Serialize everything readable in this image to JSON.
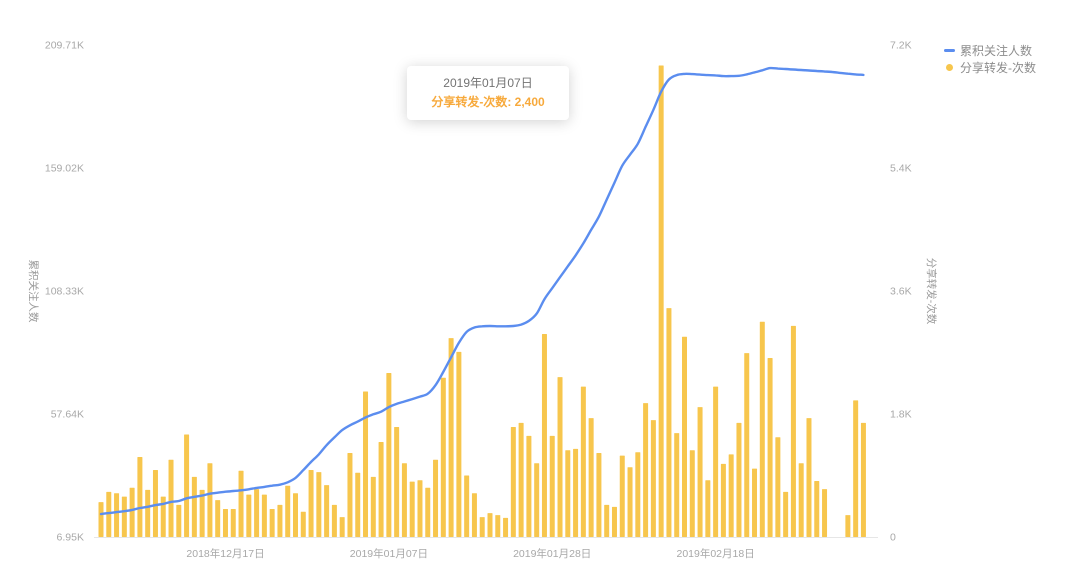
{
  "tooltip": {
    "date": "2019年01月07日",
    "label": "分享转发-次数",
    "separator": ": ",
    "value": "2,400",
    "accent_color": "#F7A93B"
  },
  "legend": [
    {
      "label": "累积关注人数",
      "color": "#5B8DEF",
      "marker": "line"
    },
    {
      "label": "分享转发-次数",
      "color": "#F7C64D",
      "marker": "dot"
    }
  ],
  "chart_data": {
    "type": "bar",
    "title": "",
    "grid": false,
    "legend_position": "top-right",
    "start_date": "2018-12-01",
    "x_tick_labels": [
      {
        "index": 16,
        "label": "2018年12月17日"
      },
      {
        "index": 37,
        "label": "2019年01月07日"
      },
      {
        "index": 58,
        "label": "2019年01月28日"
      },
      {
        "index": 79,
        "label": "2019年02月18日"
      }
    ],
    "left_axis": {
      "title": "累积关注人数",
      "range": [
        6.95,
        209.71
      ],
      "unit": "K",
      "ticks": [
        {
          "label": "6.95K",
          "value": 6.95
        },
        {
          "label": "57.64K",
          "value": 57.64
        },
        {
          "label": "108.33K",
          "value": 108.33
        },
        {
          "label": "159.02K",
          "value": 159.02
        },
        {
          "label": "209.71K",
          "value": 209.71
        }
      ]
    },
    "right_axis": {
      "title": "分享转发-次数",
      "range": [
        0,
        7200
      ],
      "ticks": [
        {
          "label": "0",
          "value": 0
        },
        {
          "label": "1.8K",
          "value": 1800
        },
        {
          "label": "3.6K",
          "value": 3600
        },
        {
          "label": "5.4K",
          "value": 5400
        },
        {
          "label": "7.2K",
          "value": 7200
        }
      ]
    },
    "series": [
      {
        "name": "累积关注人数",
        "type": "line",
        "axis": "left",
        "unit": "K",
        "color": "#5B8DEF",
        "values": [
          16.4,
          16.8,
          17.2,
          17.6,
          18.1,
          18.9,
          19.4,
          20.1,
          20.6,
          21.4,
          21.8,
          22.9,
          23.5,
          24.0,
          24.8,
          25.2,
          25.6,
          25.9,
          26.2,
          26.6,
          27.2,
          27.6,
          28.1,
          28.5,
          29.5,
          31.3,
          34.5,
          37.9,
          41.0,
          44.8,
          48.0,
          51.0,
          53.0,
          54.5,
          56.2,
          57.5,
          58.6,
          60.5,
          61.8,
          62.8,
          63.8,
          64.8,
          66.0,
          69.5,
          75.0,
          81.0,
          87.0,
          91.5,
          93.3,
          93.8,
          93.9,
          93.8,
          93.8,
          93.9,
          94.5,
          96.0,
          99.0,
          105.0,
          109.5,
          114.0,
          118.5,
          123.0,
          128.0,
          133.5,
          139.0,
          146.0,
          153.0,
          160.0,
          164.5,
          169.0,
          176.0,
          183.0,
          190.5,
          195.5,
          197.3,
          197.8,
          197.7,
          197.5,
          197.3,
          197.2,
          196.9,
          196.9,
          197.0,
          197.6,
          198.4,
          199.3,
          200.2,
          200.0,
          199.8,
          199.6,
          199.4,
          199.2,
          199.0,
          198.8,
          198.6,
          198.2,
          197.9,
          197.6,
          197.4
        ]
      },
      {
        "name": "分享转发-次数",
        "type": "bar",
        "axis": "right",
        "color": "#F7C64D",
        "values": [
          510,
          660,
          640,
          590,
          720,
          1170,
          690,
          980,
          590,
          1130,
          470,
          1500,
          880,
          690,
          1080,
          540,
          410,
          410,
          970,
          620,
          700,
          620,
          410,
          470,
          750,
          640,
          370,
          980,
          950,
          760,
          470,
          290,
          1230,
          940,
          2130,
          880,
          1390,
          2400,
          1610,
          1080,
          810,
          830,
          720,
          1130,
          2330,
          2910,
          2710,
          900,
          640,
          290,
          350,
          320,
          280,
          1610,
          1670,
          1480,
          1080,
          2970,
          1480,
          2340,
          1270,
          1290,
          2200,
          1740,
          1230,
          470,
          440,
          1190,
          1020,
          1240,
          1960,
          1710,
          6900,
          3350,
          1520,
          2930,
          1270,
          1900,
          830,
          2200,
          1070,
          1210,
          1670,
          2690,
          1000,
          3150,
          2620,
          1460,
          660,
          3090,
          1080,
          1740,
          820,
          700,
          0,
          0,
          320,
          2000,
          1670
        ]
      }
    ],
    "highlighted_point": {
      "date": "2019年01月07日",
      "series": "分享转发-次数",
      "value": 2400
    }
  },
  "colors": {
    "bar": "#F7C64D",
    "line": "#5B8DEF",
    "axis_line": "#E6E6E6",
    "tick_text": "#A8A8A8"
  }
}
